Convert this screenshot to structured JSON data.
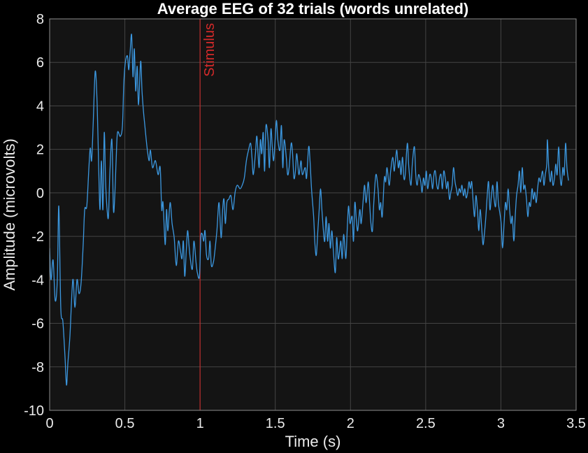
{
  "colors": {
    "figure_background": "#000000",
    "axes_background": "#141414",
    "axes_edge": "#8c8c8c",
    "grid": "#444444",
    "text": "#ececec",
    "title": "#ffffff"
  },
  "chart_data": {
    "type": "line",
    "title": "Average EEG of 32 trials (words unrelated)",
    "xlabel": "Time (s)",
    "ylabel": "Amplitude (microvolts)",
    "xlim": [
      0,
      3.5
    ],
    "ylim": [
      -10,
      8
    ],
    "xtick_labels": [
      "0",
      "0.5",
      "1",
      "1.5",
      "2",
      "2.5",
      "3",
      "3.5"
    ],
    "ytick_labels": [
      "8",
      "6",
      "4",
      "2",
      "0",
      "-2",
      "-4",
      "-6",
      "-8",
      "-10"
    ],
    "grid": true,
    "legend": false,
    "annotations": [
      {
        "x": 1,
        "label": "Stimulus",
        "color": "#d42a2a"
      }
    ],
    "series": [
      {
        "color": "#3c98e0",
        "x": [
          0,
          0.009,
          0.023,
          0.037,
          0.051,
          0.061,
          0.074,
          0.088,
          0.102,
          0.112,
          0.121,
          0.135,
          0.154,
          0.168,
          0.182,
          0.195,
          0.209,
          0.223,
          0.233,
          0.247,
          0.261,
          0.27,
          0.279,
          0.289,
          0.303,
          0.316,
          0.326,
          0.335,
          0.344,
          0.354,
          0.363,
          0.372,
          0.382,
          0.391,
          0.4,
          0.414,
          0.424,
          0.433,
          0.442,
          0.451,
          0.47,
          0.484,
          0.493,
          0.503,
          0.517,
          0.526,
          0.535,
          0.545,
          0.554,
          0.563,
          0.572,
          0.582,
          0.591,
          0.605,
          0.614,
          0.624,
          0.633,
          0.647,
          0.661,
          0.67,
          0.684,
          0.703,
          0.721,
          0.735,
          0.745,
          0.754,
          0.768,
          0.777,
          0.786,
          0.801,
          0.814,
          0.828,
          0.842,
          0.856,
          0.87,
          0.88,
          0.889,
          0.898,
          0.908,
          0.917,
          0.926,
          0.935,
          0.949,
          0.959,
          0.973,
          0.982,
          0.996,
          1.005,
          1.015,
          1.024,
          1.033,
          1.043,
          1.057,
          1.066,
          1.075,
          1.089,
          1.098,
          1.112,
          1.126,
          1.14,
          1.15,
          1.159,
          1.168,
          1.178,
          1.191,
          1.205,
          1.219,
          1.233,
          1.247,
          1.266,
          1.28,
          1.294,
          1.308,
          1.322,
          1.336,
          1.345,
          1.354,
          1.368,
          1.378,
          1.392,
          1.401,
          1.41,
          1.42,
          1.429,
          1.438,
          1.452,
          1.461,
          1.471,
          1.48,
          1.489,
          1.499,
          1.508,
          1.517,
          1.531,
          1.541,
          1.55,
          1.559,
          1.573,
          1.582,
          1.592,
          1.606,
          1.615,
          1.624,
          1.634,
          1.643,
          1.657,
          1.671,
          1.68,
          1.699,
          1.708,
          1.722,
          1.731,
          1.741,
          1.755,
          1.764,
          1.773,
          1.783,
          1.792,
          1.801,
          1.81,
          1.82,
          1.829,
          1.838,
          1.848,
          1.857,
          1.866,
          1.876,
          1.885,
          1.899,
          1.908,
          1.918,
          1.927,
          1.936,
          1.945,
          1.955,
          1.969,
          1.978,
          1.987,
          1.997,
          2.011,
          2.02,
          2.029,
          2.039,
          2.048,
          2.062,
          2.071,
          2.085,
          2.094,
          2.104,
          2.118,
          2.127,
          2.136,
          2.146,
          2.155,
          2.169,
          2.183,
          2.192,
          2.201,
          2.211,
          2.225,
          2.234,
          2.243,
          2.257,
          2.267,
          2.281,
          2.29,
          2.299,
          2.308,
          2.318,
          2.327,
          2.336,
          2.346,
          2.355,
          2.364,
          2.378,
          2.388,
          2.402,
          2.411,
          2.425,
          2.434,
          2.443,
          2.453,
          2.467,
          2.476,
          2.485,
          2.495,
          2.504,
          2.513,
          2.527,
          2.537,
          2.546,
          2.555,
          2.564,
          2.574,
          2.583,
          2.592,
          2.602,
          2.611,
          2.62,
          2.63,
          2.639,
          2.648,
          2.658,
          2.667,
          2.676,
          2.685,
          2.695,
          2.704,
          2.713,
          2.723,
          2.732,
          2.741,
          2.751,
          2.76,
          2.769,
          2.779,
          2.788,
          2.797,
          2.806,
          2.816,
          2.825,
          2.834,
          2.844,
          2.853,
          2.862,
          2.872,
          2.881,
          2.89,
          2.9,
          2.909,
          2.918,
          2.927,
          2.937,
          2.946,
          2.955,
          2.965,
          2.974,
          2.983,
          2.993,
          3.002,
          3.011,
          3.021,
          3.03,
          3.039,
          3.048,
          3.058,
          3.067,
          3.076,
          3.086,
          3.095,
          3.104,
          3.114,
          3.123,
          3.132,
          3.142,
          3.151,
          3.16,
          3.17,
          3.179,
          3.188,
          3.197,
          3.207,
          3.216,
          3.225,
          3.235,
          3.244,
          3.253,
          3.263,
          3.277,
          3.286,
          3.295,
          3.305,
          3.309,
          3.318,
          3.328,
          3.337,
          3.346,
          3.356,
          3.365,
          3.374,
          3.384,
          3.393,
          3.402,
          3.412,
          3.421,
          3.43,
          3.439,
          3.449
        ],
        "y": [
          -2.54,
          -3.99,
          -3.09,
          -4.95,
          -3.99,
          -0.61,
          -5.27,
          -5.92,
          -7.52,
          -8.84,
          -7.85,
          -6.56,
          -3.99,
          -5.27,
          -3.99,
          -4.63,
          -4.15,
          -2.38,
          -0.77,
          -0.61,
          1.16,
          2.06,
          1.48,
          3.09,
          5.59,
          4.05,
          1.16,
          -0.77,
          1.48,
          -0.77,
          2.77,
          0.51,
          -0.77,
          -1.09,
          0.84,
          2.44,
          -0.77,
          -0.13,
          1.48,
          2.77,
          2.6,
          3.09,
          5.02,
          5.98,
          6.3,
          5.66,
          6.46,
          7.27,
          5.34,
          6.62,
          4.69,
          5.82,
          4.05,
          6.05,
          4.69,
          3.73,
          3.09,
          2.12,
          1.48,
          1.96,
          1.16,
          1.48,
          0.84,
          1.16,
          -0.77,
          -0.45,
          -2.38,
          -0.77,
          -1.74,
          -0.45,
          -1.41,
          -2.06,
          -3.34,
          -2.22,
          -2.7,
          -3.02,
          -2.22,
          -3.83,
          -2.7,
          -1.74,
          -2.38,
          -3.02,
          -3.5,
          -2.22,
          -3.18,
          -3.67,
          -3.83,
          -2.06,
          -1.9,
          -2.22,
          -1.74,
          -2.86,
          -3.02,
          -2.22,
          -3.34,
          -3.18,
          -2.7,
          -1.74,
          -0.45,
          -2.06,
          -0.77,
          -0.29,
          -1.41,
          -0.45,
          -0.29,
          -0.13,
          -0.77,
          0.03,
          0.35,
          0.19,
          0.35,
          0.68,
          1.48,
          1.96,
          2.28,
          1.64,
          0.84,
          1.8,
          2.6,
          1.16,
          2.44,
          1.8,
          2.77,
          1.0,
          3.09,
          2.44,
          1.16,
          2.93,
          2.12,
          1.48,
          2.44,
          3.34,
          2.44,
          1.96,
          3.09,
          1.16,
          2.44,
          1.64,
          0.84,
          1.16,
          2.28,
          1.8,
          0.68,
          1.0,
          1.8,
          0.84,
          1.48,
          0.84,
          1.16,
          0.68,
          2.12,
          1.48,
          0.19,
          -1.09,
          -2.38,
          -2.86,
          -1.74,
          -0.77,
          0.19,
          -0.77,
          -1.74,
          -2.22,
          -1.09,
          -2.22,
          -1.41,
          -2.54,
          -1.74,
          -2.54,
          -3.67,
          -2.06,
          -3.02,
          -2.7,
          -2.22,
          -3.02,
          -1.9,
          -3.02,
          -1.74,
          -0.61,
          -1.41,
          -1.09,
          -2.22,
          -0.45,
          -1.25,
          -1.74,
          -0.77,
          -1.41,
          -0.29,
          0.35,
          -0.45,
          0.51,
          -0.45,
          -1.41,
          -1.74,
          -0.45,
          0.84,
          0.19,
          -0.77,
          -0.45,
          -1.09,
          0.68,
          0.51,
          1.16,
          0.35,
          1.0,
          1.64,
          1.0,
          1.48,
          1.96,
          1.16,
          1.48,
          0.84,
          1.64,
          0.68,
          0.84,
          2.28,
          1.16,
          0.35,
          1.32,
          2.12,
          0.84,
          0.35,
          0.84,
          0.51,
          0.03,
          0.68,
          0.35,
          1.0,
          0.19,
          0.84,
          0.68,
          0.19,
          0.84,
          1.0,
          0.35,
          0.19,
          0.68,
          0.84,
          0.19,
          1.0,
          0.68,
          0.19,
          0.51,
          -0.29,
          0.03,
          0.35,
          1.16,
          0.51,
          0.19,
          -0.13,
          0.19,
          0.03,
          0.35,
          -0.13,
          0.19,
          -0.23,
          0.03,
          0.51,
          0.19,
          0.51,
          -0.45,
          -1.09,
          -0.13,
          -0.77,
          -1.74,
          -0.77,
          -1.58,
          -2.38,
          -1.9,
          -1.09,
          -0.13,
          0.51,
          -0.77,
          -0.13,
          0.35,
          -0.29,
          -0.61,
          0.51,
          -0.45,
          -0.93,
          -1.41,
          -2.54,
          -1.41,
          -0.45,
          -0.77,
          0.19,
          -0.77,
          -1.41,
          -1.09,
          -2.22,
          -1.09,
          -0.13,
          0.35,
          1.0,
          0.03,
          1.16,
          0.19,
          0.35,
          -0.29,
          -1.09,
          -0.45,
          -0.61,
          0.19,
          -0.29,
          0.03,
          -0.45,
          0.19,
          0.68,
          0.51,
          1.0,
          0.35,
          0.84,
          1.32,
          2.44,
          1.16,
          0.51,
          1.0,
          0.35,
          0.68,
          1.32,
          0.84,
          2.12,
          0.84,
          0.35,
          1.16,
          0.84,
          2.28,
          1.16,
          0.58
        ]
      }
    ]
  }
}
